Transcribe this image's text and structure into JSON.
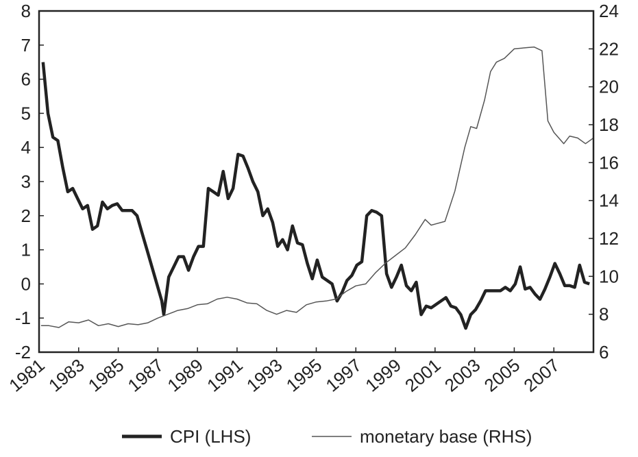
{
  "chart_data": {
    "type": "line",
    "xlim": [
      1981,
      2009
    ],
    "xticks": [
      1981,
      1983,
      1985,
      1987,
      1989,
      1991,
      1993,
      1995,
      1997,
      1999,
      2001,
      2003,
      2005,
      2007
    ],
    "ylim": [
      -2,
      8
    ],
    "yticks": [
      -2,
      -1,
      0,
      1,
      2,
      3,
      4,
      5,
      6,
      7,
      8
    ],
    "y2lim": [
      6,
      24
    ],
    "y2ticks": [
      6,
      8,
      10,
      12,
      14,
      16,
      18,
      20,
      22,
      24
    ],
    "legend": "bottom",
    "series": [
      {
        "name": "CPI (LHS)",
        "color": "#222222",
        "x": [
          1981.2,
          1981.45,
          1981.7,
          1981.95,
          1982.2,
          1982.45,
          1982.7,
          1982.95,
          1983.2,
          1983.45,
          1983.7,
          1983.95,
          1984.2,
          1984.45,
          1984.7,
          1984.95,
          1985.2,
          1985.45,
          1985.7,
          1985.95,
          1986.2,
          1986.45,
          1986.7,
          1986.95,
          1987.2,
          1987.3,
          1987.55,
          1987.8,
          1988.05,
          1988.3,
          1988.55,
          1988.8,
          1989.05,
          1989.3,
          1989.55,
          1989.8,
          1990.05,
          1990.3,
          1990.55,
          1990.8,
          1991.05,
          1991.3,
          1991.55,
          1991.8,
          1992.05,
          1992.3,
          1992.55,
          1992.8,
          1993.05,
          1993.3,
          1993.55,
          1993.8,
          1994.05,
          1994.3,
          1994.55,
          1994.8,
          1995.05,
          1995.3,
          1995.55,
          1995.8,
          1996.05,
          1996.3,
          1996.55,
          1996.8,
          1997.05,
          1997.3,
          1997.55,
          1997.8,
          1998.05,
          1998.3,
          1998.55,
          1998.8,
          1999.05,
          1999.3,
          1999.55,
          1999.8,
          2000.05,
          2000.3,
          2000.55,
          2000.8,
          2001.05,
          2001.3,
          2001.55,
          2001.8,
          2002.05,
          2002.3,
          2002.55,
          2002.8,
          2003.05,
          2003.3,
          2003.55,
          2003.8,
          2004.05,
          2004.3,
          2004.55,
          2004.8,
          2005.05,
          2005.3,
          2005.55,
          2005.8,
          2006.05,
          2006.3,
          2006.55,
          2006.8,
          2007.05,
          2007.3,
          2007.55,
          2007.8,
          2008.05,
          2008.3,
          2008.55,
          2008.8
        ],
        "values": [
          6.5,
          5.0,
          4.3,
          4.2,
          3.4,
          2.7,
          2.8,
          2.5,
          2.2,
          2.3,
          1.6,
          1.7,
          2.4,
          2.2,
          2.3,
          2.35,
          2.15,
          2.15,
          2.15,
          2.0,
          1.5,
          1.0,
          0.5,
          0.0,
          -0.5,
          -0.9,
          0.2,
          0.5,
          0.8,
          0.8,
          0.4,
          0.8,
          1.1,
          1.1,
          2.8,
          2.7,
          2.6,
          3.3,
          2.5,
          2.8,
          3.8,
          3.75,
          3.4,
          3.0,
          2.7,
          2.0,
          2.2,
          1.8,
          1.1,
          1.3,
          1.0,
          1.7,
          1.2,
          1.15,
          0.6,
          0.15,
          0.7,
          0.2,
          0.1,
          0.0,
          -0.5,
          -0.25,
          0.1,
          0.25,
          0.55,
          0.65,
          2.0,
          2.15,
          2.1,
          2.0,
          0.3,
          -0.1,
          0.2,
          0.55,
          -0.05,
          -0.2,
          0.05,
          -0.9,
          -0.65,
          -0.7,
          -0.6,
          -0.5,
          -0.4,
          -0.65,
          -0.7,
          -0.9,
          -1.3,
          -0.9,
          -0.75,
          -0.5,
          -0.2,
          -0.2,
          -0.2,
          -0.2,
          -0.1,
          -0.2,
          0.0,
          0.5,
          -0.15,
          -0.1,
          -0.3,
          -0.45,
          -0.15,
          0.2,
          0.6,
          0.3,
          -0.05,
          -0.05,
          -0.1,
          0.55,
          0.05,
          0.0
        ]
      },
      {
        "name": "monetary base (RHS)",
        "color": "#555555",
        "axis": "y2",
        "x": [
          1981.1,
          1981.5,
          1982,
          1982.5,
          1983,
          1983.5,
          1984,
          1984.5,
          1985,
          1985.5,
          1986,
          1986.5,
          1987,
          1987.5,
          1988,
          1988.5,
          1989,
          1989.5,
          1990,
          1990.5,
          1991,
          1991.5,
          1992,
          1992.5,
          1993,
          1993.5,
          1994,
          1994.5,
          1995,
          1995.5,
          1996,
          1996.5,
          1997,
          1997.5,
          1998,
          1998.5,
          1999,
          1999.5,
          2000,
          2000.5,
          2000.8,
          2001.5,
          2002,
          2002.5,
          2002.8,
          2003.1,
          2003.5,
          2003.8,
          2004.1,
          2004.5,
          2005,
          2005.5,
          2006,
          2006.4,
          2006.7,
          2007,
          2007.5,
          2007.8,
          2008.2,
          2008.6,
          2009
        ],
        "values": [
          7.4,
          7.4,
          7.3,
          7.6,
          7.55,
          7.7,
          7.4,
          7.5,
          7.35,
          7.5,
          7.45,
          7.55,
          7.8,
          8.0,
          8.2,
          8.3,
          8.5,
          8.55,
          8.8,
          8.9,
          8.8,
          8.6,
          8.55,
          8.2,
          8.0,
          8.2,
          8.1,
          8.5,
          8.65,
          8.7,
          8.8,
          9.2,
          9.5,
          9.6,
          10.2,
          10.7,
          11.1,
          11.5,
          12.2,
          13.0,
          12.7,
          12.9,
          14.5,
          16.8,
          17.9,
          17.8,
          19.3,
          20.8,
          21.3,
          21.5,
          22.0,
          22.05,
          22.1,
          21.9,
          18.2,
          17.6,
          17.0,
          17.4,
          17.3,
          17.0,
          17.3
        ]
      }
    ]
  }
}
